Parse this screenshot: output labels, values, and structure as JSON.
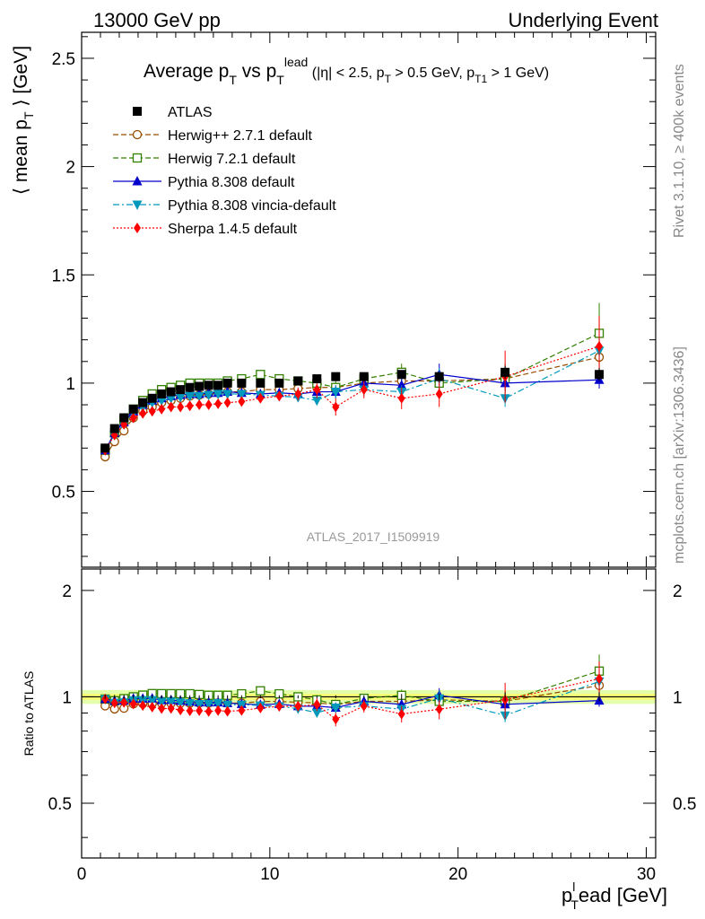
{
  "header": {
    "left": "13000 GeV pp",
    "right": "Underlying Event"
  },
  "side": {
    "rivet": "Rivet 3.1.10, ≥ 400k events",
    "mcplots": "mcplots.cern.ch [arXiv:1306.3436]"
  },
  "chart_data": {
    "type": "scatter",
    "title": {
      "main": "Average p",
      "main_sub": "T",
      "vs": " vs p",
      "vs_sub": "T",
      "vs_sup": "lead",
      "cuts_a": " (|η| < 2.5, p",
      "cuts_a_sub": "T",
      "cuts_b": " > 0.5 GeV, p",
      "cuts_b_sub": "T1",
      "cuts_c": " > 1 GeV)"
    },
    "ylabel_main": "⟨ mean p",
    "ylabel_main_sub": "T",
    "ylabel_main_end": " ⟩ [GeV]",
    "ylabel_ratio": "Ratio to ATLAS",
    "xlabel": "p",
    "xlabel_sub": "T",
    "xlabel_sup": "l",
    "xlabel_end": "ead [GeV]",
    "watermark": "ATLAS_2017_I1509919",
    "xlim": [
      0,
      30.5
    ],
    "ylim_main": [
      0.15,
      2.62
    ],
    "ylim_ratio": [
      0.35,
      2.3
    ],
    "x_ticks": [
      "0",
      "10",
      "20",
      "30"
    ],
    "y_ticks_main": [
      "0.5",
      "1",
      "1.5",
      "2",
      "2.5"
    ],
    "y_ticks_ratio": [
      "0.5",
      "1",
      "2"
    ],
    "legend_position": "top-left",
    "x": [
      1.25,
      1.75,
      2.25,
      2.75,
      3.25,
      3.75,
      4.25,
      4.75,
      5.25,
      5.75,
      6.25,
      6.75,
      7.25,
      7.75,
      8.5,
      9.5,
      10.5,
      11.5,
      12.5,
      13.5,
      15,
      17,
      19,
      22.5,
      27.5
    ],
    "series": [
      {
        "name": "ATLAS",
        "color": "#000000",
        "marker": "square-filled",
        "values": [
          0.7,
          0.79,
          0.84,
          0.88,
          0.91,
          0.93,
          0.95,
          0.96,
          0.97,
          0.98,
          0.985,
          0.99,
          0.99,
          1.0,
          1.0,
          1.0,
          1.0,
          1.01,
          1.02,
          1.03,
          1.03,
          1.04,
          1.03,
          1.05,
          1.04
        ],
        "errors": [
          0.01,
          0.01,
          0.01,
          0.01,
          0.01,
          0.01,
          0.01,
          0.01,
          0.01,
          0.01,
          0.01,
          0.01,
          0.01,
          0.01,
          0.01,
          0.01,
          0.01,
          0.01,
          0.01,
          0.01,
          0.01,
          0.02,
          0.02,
          0.03,
          0.03
        ]
      },
      {
        "name": "Herwig++ 2.7.1 default",
        "color": "#994c00",
        "marker": "circle-open",
        "dash": "6,3",
        "values": [
          0.66,
          0.73,
          0.78,
          0.84,
          0.87,
          0.89,
          0.91,
          0.92,
          0.93,
          0.94,
          0.945,
          0.95,
          0.955,
          0.96,
          0.96,
          0.97,
          0.97,
          0.975,
          0.98,
          0.98,
          1.0,
          1.01,
          1.01,
          1.02,
          1.12
        ],
        "errors": [
          0.01,
          0.01,
          0.01,
          0.01,
          0.01,
          0.01,
          0.01,
          0.01,
          0.01,
          0.01,
          0.01,
          0.01,
          0.01,
          0.01,
          0.01,
          0.01,
          0.01,
          0.01,
          0.02,
          0.02,
          0.02,
          0.03,
          0.04,
          0.06,
          0.08
        ]
      },
      {
        "name": "Herwig 7.2.1 default",
        "color": "#338000",
        "marker": "square-open",
        "dash": "6,3",
        "values": [
          0.69,
          0.77,
          0.83,
          0.88,
          0.92,
          0.95,
          0.97,
          0.98,
          0.99,
          1.0,
          1.0,
          1.0,
          1.0,
          1.01,
          1.02,
          1.04,
          1.02,
          1.01,
          1.0,
          0.98,
          1.02,
          1.05,
          1.0,
          1.02,
          1.23
        ],
        "errors": [
          0.01,
          0.01,
          0.01,
          0.01,
          0.01,
          0.01,
          0.01,
          0.01,
          0.01,
          0.01,
          0.01,
          0.01,
          0.01,
          0.01,
          0.01,
          0.01,
          0.01,
          0.02,
          0.02,
          0.03,
          0.03,
          0.04,
          0.05,
          0.07,
          0.14
        ]
      },
      {
        "name": "Pythia 8.308 default",
        "color": "#0000cc",
        "marker": "triangle-up",
        "dash": "",
        "values": [
          0.69,
          0.77,
          0.82,
          0.87,
          0.9,
          0.92,
          0.93,
          0.94,
          0.945,
          0.95,
          0.95,
          0.955,
          0.955,
          0.96,
          0.955,
          0.95,
          0.955,
          0.95,
          0.96,
          0.96,
          1.0,
          0.99,
          1.04,
          1.0,
          1.015
        ],
        "errors": [
          0.01,
          0.01,
          0.01,
          0.01,
          0.01,
          0.01,
          0.01,
          0.01,
          0.01,
          0.01,
          0.01,
          0.01,
          0.01,
          0.01,
          0.01,
          0.01,
          0.01,
          0.02,
          0.02,
          0.03,
          0.03,
          0.03,
          0.05,
          0.04,
          0.04
        ]
      },
      {
        "name": "Pythia 8.308 vincia-default",
        "color": "#0099bb",
        "marker": "triangle-down",
        "dash": "7,3,2,3",
        "values": [
          0.69,
          0.76,
          0.81,
          0.86,
          0.89,
          0.91,
          0.92,
          0.93,
          0.935,
          0.94,
          0.94,
          0.945,
          0.95,
          0.95,
          0.95,
          0.945,
          0.94,
          0.935,
          0.92,
          0.96,
          0.97,
          0.96,
          1.02,
          0.93,
          1.15
        ],
        "errors": [
          0.01,
          0.01,
          0.01,
          0.01,
          0.01,
          0.01,
          0.01,
          0.01,
          0.01,
          0.01,
          0.01,
          0.01,
          0.01,
          0.01,
          0.01,
          0.01,
          0.01,
          0.02,
          0.02,
          0.03,
          0.03,
          0.03,
          0.05,
          0.04,
          0.09
        ]
      },
      {
        "name": "Sherpa 1.4.5 default",
        "color": "#ff0000",
        "marker": "diamond",
        "dash": "2,2",
        "values": [
          0.69,
          0.76,
          0.81,
          0.84,
          0.86,
          0.87,
          0.88,
          0.89,
          0.89,
          0.895,
          0.9,
          0.9,
          0.905,
          0.91,
          0.915,
          0.93,
          0.94,
          0.95,
          0.97,
          0.89,
          0.97,
          0.93,
          0.95,
          1.03,
          1.17
        ],
        "errors": [
          0.01,
          0.01,
          0.01,
          0.01,
          0.01,
          0.01,
          0.01,
          0.01,
          0.01,
          0.01,
          0.01,
          0.01,
          0.01,
          0.01,
          0.02,
          0.02,
          0.02,
          0.03,
          0.04,
          0.04,
          0.04,
          0.05,
          0.06,
          0.12,
          0.14
        ]
      }
    ],
    "ratio_band_color": "#ccff66"
  }
}
